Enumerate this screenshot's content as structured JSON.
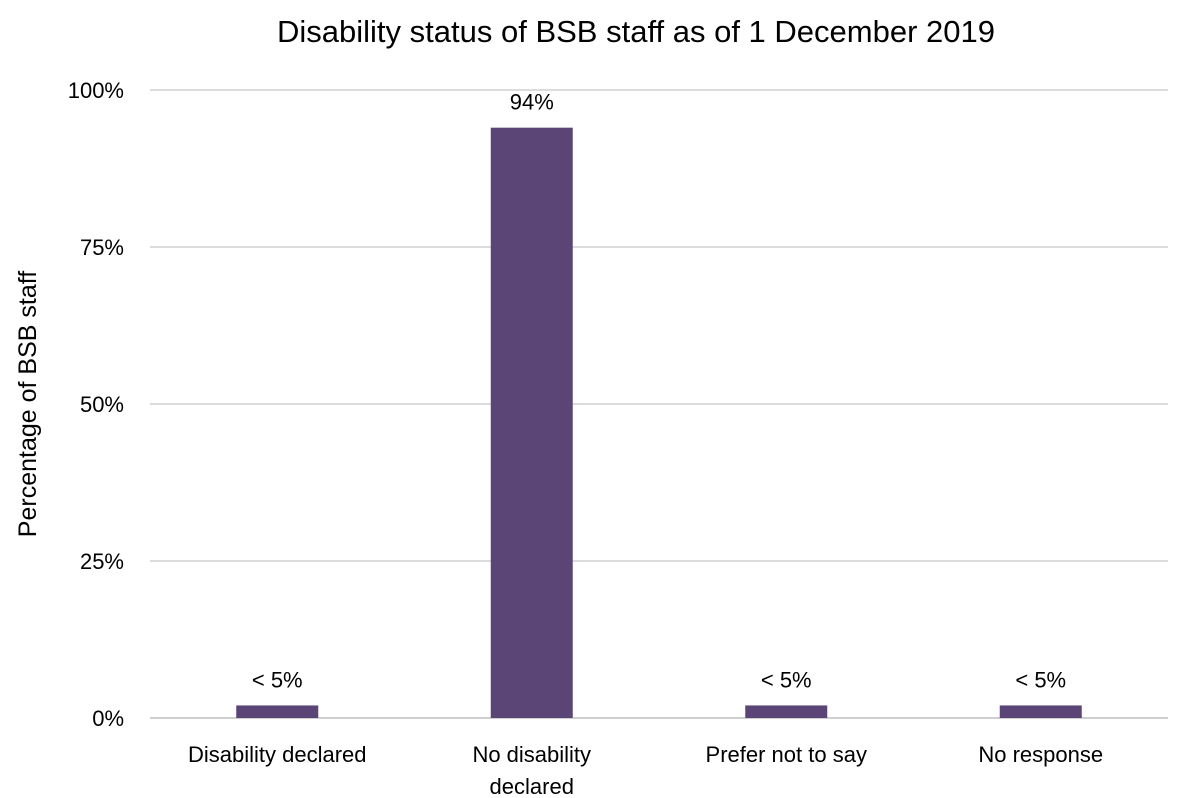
{
  "chart_data": {
    "type": "bar",
    "title": "Disability status of BSB staff as of 1 December 2019",
    "xlabel": "",
    "ylabel": "Percentage of BSB staff",
    "categories": [
      [
        "Disability declared"
      ],
      [
        "No disability",
        "declared"
      ],
      [
        "Prefer not to say"
      ],
      [
        "No response"
      ]
    ],
    "values": [
      2,
      94,
      2,
      2
    ],
    "data_labels": [
      "< 5%",
      "94%",
      "< 5%",
      "< 5%"
    ],
    "ylim": [
      0,
      100
    ],
    "yticks": [
      0,
      25,
      50,
      75,
      100
    ],
    "ytick_labels": [
      "0%",
      "25%",
      "50%",
      "75%",
      "100%"
    ],
    "grid": true,
    "legend": "none",
    "bar_color": "#5b4577"
  }
}
